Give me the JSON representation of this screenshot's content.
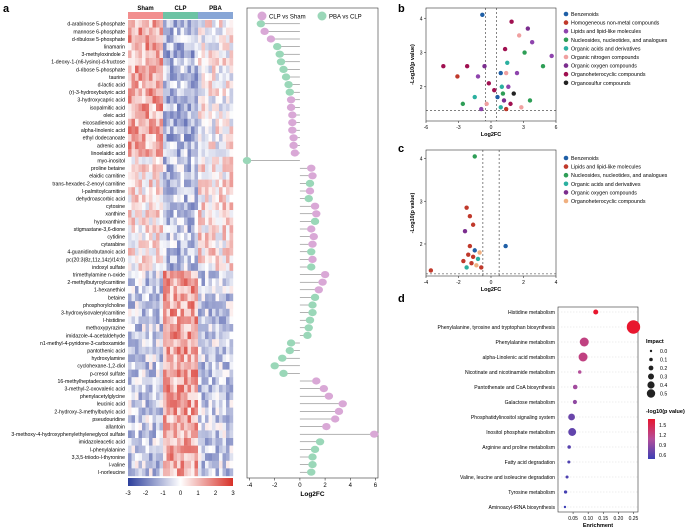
{
  "panel_labels": [
    "a",
    "b",
    "c",
    "d"
  ],
  "chart_data": [
    {
      "panel": "a",
      "type": "heatmap",
      "groups": [
        "Sham",
        "CLP",
        "PBA"
      ],
      "group_colors": [
        "#f28e8e",
        "#6cc3a4",
        "#88a6d6"
      ],
      "colorbar_ticks": [
        "-3",
        "-2",
        "-1",
        "0",
        "1",
        "2",
        "3"
      ],
      "colorbar_colors": [
        "#2c3e9c",
        "#ffffff",
        "#d73027"
      ],
      "rows": [
        "d-arabinose 5-phosphate",
        "mannose 6-phosphate",
        "d-ribulose 5-phosphate",
        "linamarin",
        "3-methyloxindole 2",
        "1-deoxy-1-(n6-lysino)-d-fructose",
        "d-ribose 5-phosphate",
        "taurine",
        "d-lactic acid",
        "(r)-3-hydroxybutyric acid",
        "3-hydroxycapric acid",
        "isopalmitic acid",
        "oleic acid",
        "eicosadienoic acid",
        "alpha-linolenic acid",
        "ethyl dodecanoate",
        "adrenic acid",
        "linoelaidic acid",
        "myo-inositol",
        "proline betaine",
        "elaidic carnitine",
        "trans-hexadec-2-enoyl carnitine",
        "l-palmitoylcarnitine",
        "dehydroascorbic acid",
        "cytosine",
        "xanthine",
        "hypoxanthine",
        "stigmastane-3,6-dione",
        "cytidine",
        "cytarabine",
        "4-guanidinobutanoic acid",
        "pc(20:3(8z,11z,14z)/14:0)",
        "indoxyl sulfate",
        "trimethylamine n-oxide",
        "2-methylbutyroylcarnitine",
        "1-hexanethiol",
        "betaine",
        "phosphorylcholine",
        "3-hydroxyisovalerylcarnitine",
        "l-histidine",
        "methoxypyrazine",
        "imidazole-4-acetaldehyde",
        "n1-methyl-4-pyridone-3-carboxamide",
        "pantothenic acid",
        "hydroxylamine",
        "cyclohexane-1,2-diol",
        "p-cresol sulfate",
        "16-methylheptadecanoic acid",
        "3-methyl-2-oxovaleric acid",
        "phenylacetylglycine",
        "leucinic acid",
        "2-hydroxy-3-methylbutyric acid",
        "pseudouridine",
        "allantoin",
        "3-methoxy-4-hydroxyphenylethyleneglycol sulfate",
        "imidazoleacetic acid",
        "l-phenylalanine",
        "3,3,5-triiodo-l-thyronine",
        "l-valine",
        "l-norleucine"
      ]
    },
    {
      "panel": "a-lollipop",
      "type": "lollipop",
      "series": [
        {
          "name": "CLP vs Sham",
          "color": "#d9a8d6"
        },
        {
          "name": "PBA vs CLP",
          "color": "#9ad7b8"
        }
      ],
      "xlabel": "Log2FC",
      "xlim": [
        -4.2,
        6.2
      ],
      "xticks": [
        -4,
        -2,
        0,
        2,
        4,
        6
      ],
      "values": [
        -3.1,
        -2.8,
        -2.3,
        -1.8,
        -1.6,
        -1.5,
        -1.3,
        -1.1,
        -0.9,
        -0.8,
        -0.7,
        -0.7,
        -0.6,
        -0.6,
        -0.6,
        -0.5,
        -0.5,
        -0.4,
        -4.2,
        0.9,
        1.0,
        0.8,
        0.8,
        0.7,
        1.2,
        1.3,
        1.2,
        0.9,
        1.1,
        1.0,
        0.9,
        1.0,
        0.9,
        2.0,
        1.8,
        1.5,
        1.2,
        1.0,
        1.0,
        0.8,
        0.7,
        0.6,
        -0.7,
        -0.8,
        -1.4,
        -2.0,
        -1.3,
        1.3,
        1.9,
        2.3,
        3.4,
        3.1,
        2.8,
        2.1,
        5.9,
        1.6,
        1.2,
        1.0,
        1.0,
        0.9
      ],
      "point_colors": [
        "#9ad7b8",
        "#d9a8d6",
        "#d9a8d6",
        "#9ad7b8",
        "#9ad7b8",
        "#9ad7b8",
        "#9ad7b8",
        "#9ad7b8",
        "#9ad7b8",
        "#9ad7b8",
        "#d9a8d6",
        "#d9a8d6",
        "#d9a8d6",
        "#d9a8d6",
        "#d9a8d6",
        "#d9a8d6",
        "#d9a8d6",
        "#d9a8d6",
        "#9ad7b8",
        "#d9a8d6",
        "#d9a8d6",
        "#9ad7b8",
        "#d9a8d6",
        "#9ad7b8",
        "#d9a8d6",
        "#d9a8d6",
        "#9ad7b8",
        "#d9a8d6",
        "#d9a8d6",
        "#d9a8d6",
        "#9ad7b8",
        "#d9a8d6",
        "#9ad7b8",
        "#d9a8d6",
        "#d9a8d6",
        "#d9a8d6",
        "#9ad7b8",
        "#9ad7b8",
        "#9ad7b8",
        "#9ad7b8",
        "#9ad7b8",
        "#9ad7b8",
        "#9ad7b8",
        "#9ad7b8",
        "#9ad7b8",
        "#9ad7b8",
        "#9ad7b8",
        "#d9a8d6",
        "#d9a8d6",
        "#d9a8d6",
        "#d9a8d6",
        "#d9a8d6",
        "#d9a8d6",
        "#d9a8d6",
        "#d9a8d6",
        "#9ad7b8",
        "#9ad7b8",
        "#9ad7b8",
        "#9ad7b8",
        "#9ad7b8"
      ]
    },
    {
      "panel": "b",
      "type": "scatter",
      "xlabel": "Log2FC",
      "ylabel": "-Log10(p value)",
      "xlim": [
        -6,
        6
      ],
      "ylim": [
        1,
        4.3
      ],
      "xticks": [
        -6,
        -3,
        0,
        3,
        6
      ],
      "yticks": [
        2,
        3,
        4
      ],
      "legend": [
        {
          "name": "Benzenoids",
          "color": "#1f5fa6"
        },
        {
          "name": "Homogeneous non-metal compounds",
          "color": "#c0392b"
        },
        {
          "name": "Lipids and lipid-like molecules",
          "color": "#8e44ad"
        },
        {
          "name": "Nucleosides, nucleotides, and analogues",
          "color": "#2e9e56"
        },
        {
          "name": "Organic acids and derivatives",
          "color": "#2bb0a0"
        },
        {
          "name": "Organic nitrogen compounds",
          "color": "#f0a0a0"
        },
        {
          "name": "Organic oxygen compounds",
          "color": "#7b2d8e"
        },
        {
          "name": "Organoheterocyclic compounds",
          "color": "#a01050"
        },
        {
          "name": "Organosulfur compounds",
          "color": "#222222"
        }
      ],
      "points": [
        {
          "x": -0.8,
          "y": 4.1,
          "c": "#1f5fa6"
        },
        {
          "x": 1.9,
          "y": 3.9,
          "c": "#a01050"
        },
        {
          "x": 3.4,
          "y": 3.7,
          "c": "#7b2d8e"
        },
        {
          "x": 2.6,
          "y": 3.5,
          "c": "#f0a0a0"
        },
        {
          "x": 3.8,
          "y": 3.3,
          "c": "#8e44ad"
        },
        {
          "x": 3.1,
          "y": 3.0,
          "c": "#2e9e56"
        },
        {
          "x": 1.3,
          "y": 3.1,
          "c": "#a01050"
        },
        {
          "x": 5.6,
          "y": 2.9,
          "c": "#8e44ad"
        },
        {
          "x": 1.5,
          "y": 2.7,
          "c": "#2bb0a0"
        },
        {
          "x": 4.8,
          "y": 2.6,
          "c": "#2e9e56"
        },
        {
          "x": -4.4,
          "y": 2.6,
          "c": "#a01050"
        },
        {
          "x": -2.2,
          "y": 2.6,
          "c": "#a01050"
        },
        {
          "x": -3.1,
          "y": 2.3,
          "c": "#c0392b"
        },
        {
          "x": -1.2,
          "y": 2.3,
          "c": "#8e44ad"
        },
        {
          "x": -0.6,
          "y": 2.6,
          "c": "#7b2d8e"
        },
        {
          "x": 0.9,
          "y": 2.4,
          "c": "#1f5fa6"
        },
        {
          "x": 1.4,
          "y": 2.4,
          "c": "#f0a0a0"
        },
        {
          "x": 2.4,
          "y": 2.4,
          "c": "#8e44ad"
        },
        {
          "x": -0.2,
          "y": 2.1,
          "c": "#a01050"
        },
        {
          "x": 1.0,
          "y": 2.0,
          "c": "#2bb0a0"
        },
        {
          "x": 1.6,
          "y": 2.0,
          "c": "#8e44ad"
        },
        {
          "x": 2.1,
          "y": 1.8,
          "c": "#222222"
        },
        {
          "x": -1.5,
          "y": 1.7,
          "c": "#2bb0a0"
        },
        {
          "x": -2.6,
          "y": 1.5,
          "c": "#2e9e56"
        },
        {
          "x": 0.6,
          "y": 1.7,
          "c": "#1f5fa6"
        },
        {
          "x": 1.2,
          "y": 1.6,
          "c": "#7b2d8e"
        },
        {
          "x": 1.8,
          "y": 1.5,
          "c": "#a01050"
        },
        {
          "x": -0.4,
          "y": 1.5,
          "c": "#f0a0a0"
        },
        {
          "x": 0.9,
          "y": 1.4,
          "c": "#2bb0a0"
        },
        {
          "x": 1.4,
          "y": 1.35,
          "c": "#c0392b"
        },
        {
          "x": 2.8,
          "y": 1.4,
          "c": "#f0a0a0"
        },
        {
          "x": 3.6,
          "y": 1.6,
          "c": "#2e9e56"
        },
        {
          "x": -0.9,
          "y": 1.35,
          "c": "#8e44ad"
        },
        {
          "x": 1.1,
          "y": 1.8,
          "c": "#2e9e56"
        },
        {
          "x": 0.3,
          "y": 1.9,
          "c": "#a01050"
        }
      ]
    },
    {
      "panel": "c",
      "type": "scatter",
      "xlabel": "Log2FC",
      "ylabel": "-Log10(p value)",
      "xlim": [
        -4,
        4
      ],
      "ylim": [
        1.25,
        4.2
      ],
      "xticks": [
        -4,
        -2,
        0,
        2,
        4
      ],
      "yticks": [
        2,
        3,
        4
      ],
      "legend": [
        {
          "name": "Benzenoids",
          "color": "#1f5fa6"
        },
        {
          "name": "Lipids and lipid-like molecules",
          "color": "#c0392b"
        },
        {
          "name": "Nucleosides, nucleotides, and analogues",
          "color": "#2e9e56"
        },
        {
          "name": "Organic acids and derivatives",
          "color": "#2bb0a0"
        },
        {
          "name": "Organic oxygen compounds",
          "color": "#7b2d8e"
        },
        {
          "name": "Organoheterocyclic compounds",
          "color": "#f0b080"
        }
      ],
      "points": [
        {
          "x": -1.0,
          "y": 4.05,
          "c": "#2e9e56"
        },
        {
          "x": -1.5,
          "y": 2.85,
          "c": "#c0392b"
        },
        {
          "x": -1.3,
          "y": 2.65,
          "c": "#c0392b"
        },
        {
          "x": -1.1,
          "y": 2.45,
          "c": "#c0392b"
        },
        {
          "x": -1.6,
          "y": 2.3,
          "c": "#7b2d8e"
        },
        {
          "x": 0.9,
          "y": 1.95,
          "c": "#1f5fa6"
        },
        {
          "x": -1.3,
          "y": 1.95,
          "c": "#c0392b"
        },
        {
          "x": -1.0,
          "y": 1.85,
          "c": "#1f5fa6"
        },
        {
          "x": -0.7,
          "y": 1.8,
          "c": "#f0b080"
        },
        {
          "x": -1.4,
          "y": 1.75,
          "c": "#c0392b"
        },
        {
          "x": -1.1,
          "y": 1.7,
          "c": "#c0392b"
        },
        {
          "x": -0.8,
          "y": 1.65,
          "c": "#2bb0a0"
        },
        {
          "x": -1.7,
          "y": 1.6,
          "c": "#c0392b"
        },
        {
          "x": -1.2,
          "y": 1.55,
          "c": "#c0392b"
        },
        {
          "x": -0.9,
          "y": 1.5,
          "c": "#f0b080"
        },
        {
          "x": -1.5,
          "y": 1.45,
          "c": "#2bb0a0"
        },
        {
          "x": -0.6,
          "y": 1.45,
          "c": "#c0392b"
        },
        {
          "x": -3.7,
          "y": 1.38,
          "c": "#c0392b"
        }
      ]
    },
    {
      "panel": "d",
      "type": "scatter",
      "xlabel": "Enrichment",
      "xlim": [
        0.0,
        0.265
      ],
      "xticks": [
        0.05,
        0.1,
        0.15,
        0.2,
        0.25
      ],
      "categories": [
        "Histidine metabolism",
        "Phenylalanine, tyrosine and tryptophan biosynthesis",
        "Phenylalanine metabolism",
        "alpha-Linolenic acid metabolism",
        "Nicotinate and nicotinamide metabolism",
        "Pantothenate and CoA biosynthesis",
        "Galactose metabolism",
        "Phosphatidylinositol signaling system",
        "Inositol phosphate metabolism",
        "Arginine and proline metabolism",
        "Fatty acid degradation",
        "Valine, leucine and isoleucine degradation",
        "Tyrosine metabolism",
        "Aminoacyl-tRNA biosynthesis"
      ],
      "enrichment": [
        0.125,
        0.25,
        0.087,
        0.083,
        0.072,
        0.057,
        0.056,
        0.045,
        0.047,
        0.037,
        0.036,
        0.03,
        0.025,
        0.023
      ],
      "impact": [
        0.12,
        0.5,
        0.3,
        0.3,
        0.05,
        0.1,
        0.08,
        0.2,
        0.25,
        0.05,
        0.03,
        0.03,
        0.04,
        0.0
      ],
      "color_value": [
        1.75,
        1.75,
        1.25,
        1.25,
        1.1,
        1.0,
        0.9,
        0.7,
        0.65,
        0.6,
        0.55,
        0.55,
        0.5,
        0.45
      ],
      "size_legend_title": "Impact",
      "size_legend": [
        "0.0",
        "0.1",
        "0.2",
        "0.3",
        "0.4",
        "0.5"
      ],
      "color_legend_title": "-log10(p value)",
      "color_legend": [
        "1.5",
        "1.2",
        "0.9",
        "0.6"
      ]
    }
  ]
}
